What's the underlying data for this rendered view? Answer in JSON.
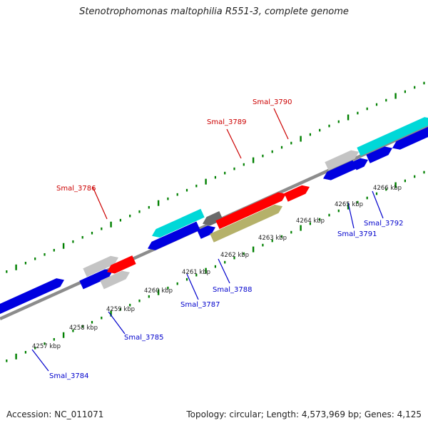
{
  "title": "Stenotrophomonas maltophilia R551-3, complete genome",
  "footer": {
    "accession": "Accession: NC_011071",
    "stats": "Topology: circular; Length: 4,573,969 bp; Genes: 4,125"
  },
  "colors": {
    "backbone": "#8c8c8c",
    "tick": "#008000",
    "red": "#ff0000",
    "blue": "#0000e0",
    "cyan": "#00d8d8",
    "gray": "#c4c4c4",
    "darkgray": "#6a6a6a",
    "olive": "#b5b16a",
    "label_red": "#cc0000",
    "label_blue": "#0000cc"
  },
  "kbp_labels": [
    "4257 kbp",
    "4258 kbp",
    "4259 kbp",
    "4260 kbp",
    "4261 kbp",
    "4262 kbp",
    "4263 kbp",
    "4264 kbp",
    "4265 kbp",
    "4266 kbp"
  ],
  "labels": {
    "smal_3784": "Smal_3784",
    "smal_3785": "Smal_3785",
    "smal_3786": "Smal_3786",
    "smal_3787": "Smal_3787",
    "smal_3788": "Smal_3788",
    "smal_3789": "Smal_3789",
    "smal_3790": "Smal_3790",
    "smal_3791": "Smal_3791",
    "smal_3792": "Smal_3792"
  }
}
